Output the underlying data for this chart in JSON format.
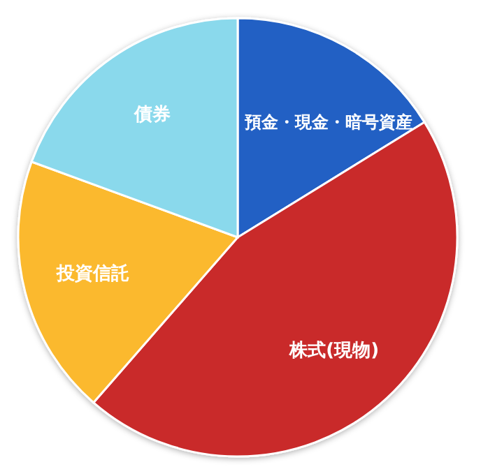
{
  "chart_data": {
    "type": "pie",
    "categories": [
      "預金・現金・暗号資産",
      "株式(現物)",
      "投資信託",
      "債券"
    ],
    "values": [
      16.2,
      45.2,
      19.2,
      19.4
    ],
    "colors": [
      "#2060c4",
      "#c9292b",
      "#fbb92e",
      "#8ad9ec"
    ]
  }
}
